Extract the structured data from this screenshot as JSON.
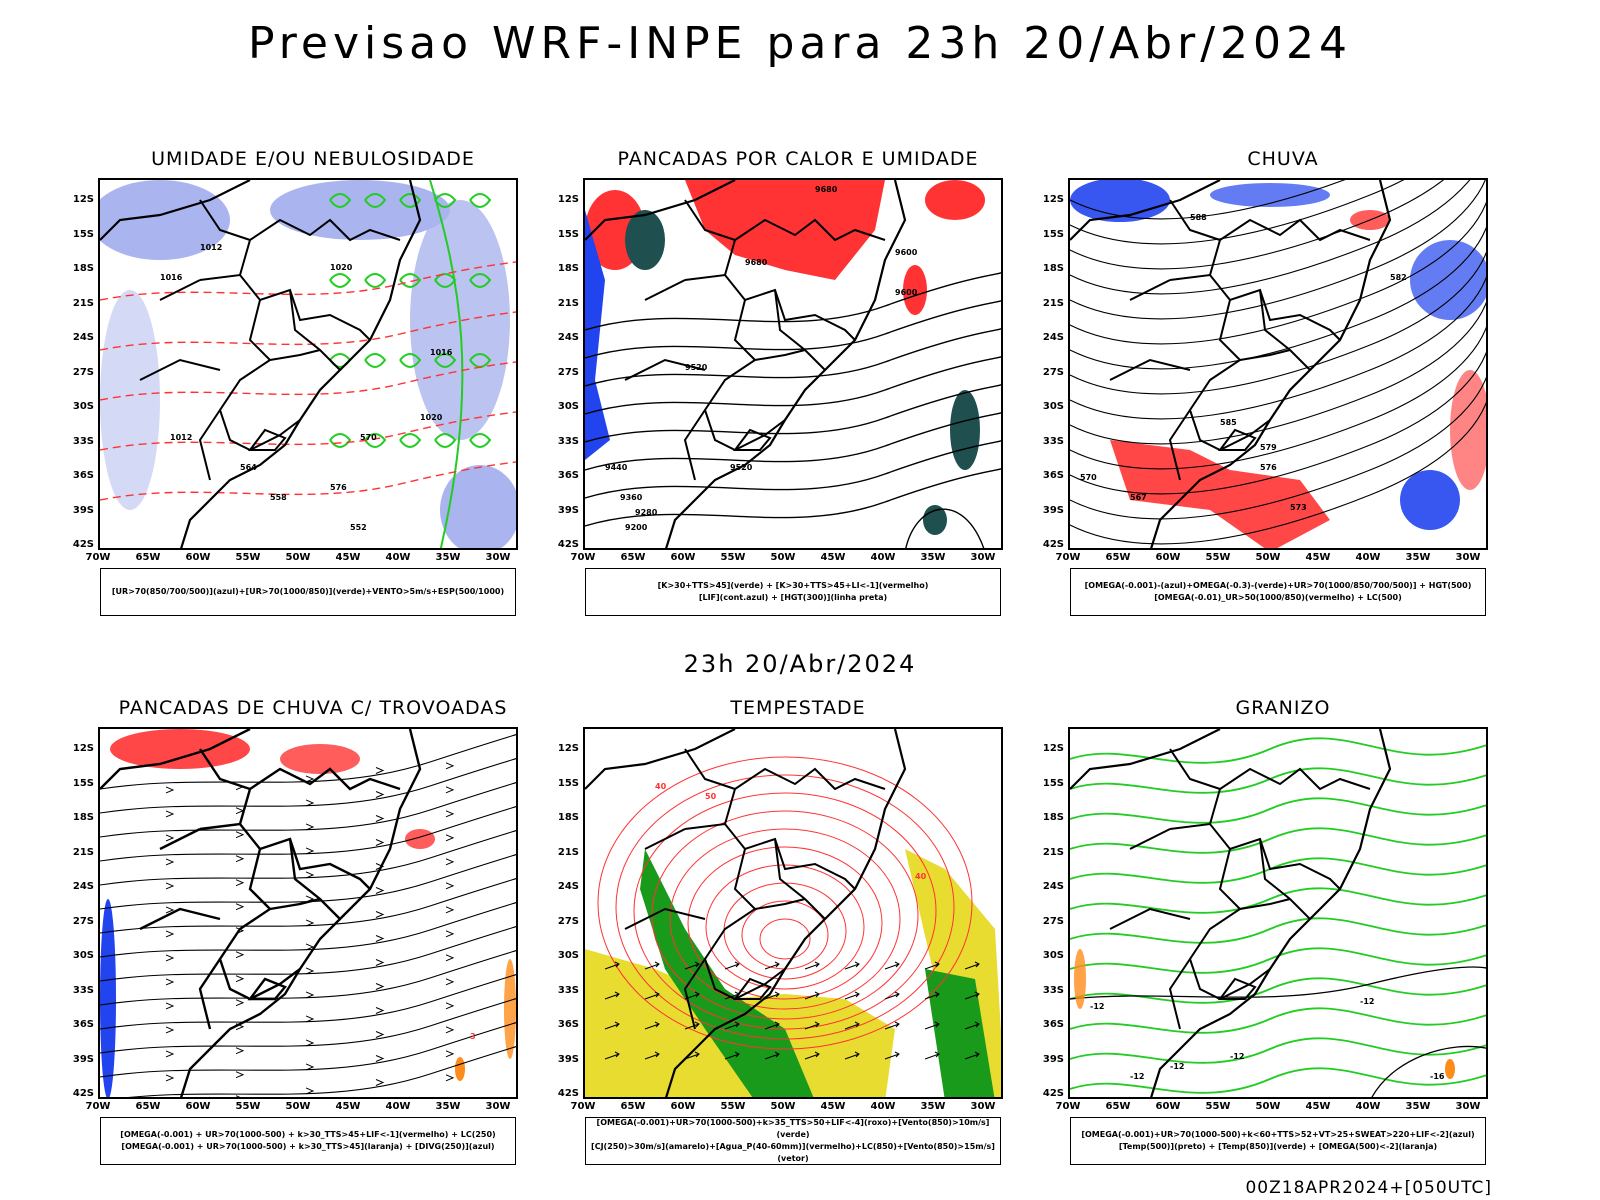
{
  "header": {
    "title": "Previsao WRF-INPE  para 23h 20/Abr/2024"
  },
  "mid_date": "23h 20/Abr/2024",
  "footer": {
    "run": "00Z18APR2024+[050UTC]"
  },
  "axes": {
    "lat_labels": [
      "12S",
      "15S",
      "18S",
      "21S",
      "24S",
      "27S",
      "30S",
      "33S",
      "36S",
      "39S",
      "42S"
    ],
    "lon_labels": [
      "70W",
      "65W",
      "60W",
      "55W",
      "50W",
      "45W",
      "40W",
      "35W",
      "30W"
    ]
  },
  "colors": {
    "blue_shade": "#aab4ee",
    "green": "#22cc22",
    "red": "#ff3333",
    "yellow": "#e8dc30",
    "blue": "#2244ee",
    "dark_teal": "#1f4f4f",
    "orange": "#ff8c1a",
    "dark_green": "#1a9a1a"
  },
  "panels": [
    {
      "title": "UMIDADE E/OU NEBULOSIDADE",
      "legend": [
        "[UR>70(850/700/500)](azul)+[UR>70(1000/850)](verde)+VENTO>5m/s+ESP(500/1000)"
      ],
      "labels": [
        "1012",
        "1016",
        "1020",
        "1016",
        "1020",
        "1012",
        "576",
        "570",
        "564",
        "558",
        "552"
      ]
    },
    {
      "title": "PANCADAS POR CALOR E UMIDADE",
      "legend": [
        "[K>30+TTS>45](verde) + [K>30+TTS>45+LI<-1](vermelho)",
        "[LIF](cont.azul) + [HGT(300)](linha preta)"
      ],
      "labels": [
        "9680",
        "9680",
        "9600",
        "9520",
        "9440",
        "9360",
        "9280",
        "9200",
        "9600",
        "9520"
      ]
    },
    {
      "title": "CHUVA",
      "legend": [
        "[OMEGA(-0.001)-(azul)+OMEGA(-0.3)-(verde)+UR>70(1000/850/700/500)] + HGT(500)",
        "[OMEGA(-0.01)_UR>50(1000/850)(vermelho) + LC(500)"
      ],
      "labels": [
        "588",
        "585",
        "582",
        "579",
        "576",
        "573",
        "570",
        "567"
      ]
    },
    {
      "title": "PANCADAS DE CHUVA C/ TROVOADAS",
      "legend": [
        "[OMEGA(-0.001) + UR>70(1000-500) + k>30_TTS>45+LIF<-1](vermelho) + LC(250)",
        "[OMEGA(-0.001) + UR>70(1000-500) + k>30_TTS>45](laranja) + [DIVG(250)](azul)"
      ],
      "labels": [
        "3"
      ]
    },
    {
      "title": "TEMPESTADE",
      "legend": [
        "[OMEGA(-0.001)+UR>70(1000-500)+k>35_TTS>50+LIF<-4](roxo)+[Vento(850)>10m/s](verde)",
        "[CJ(250)>30m/s](amarelo)+[Agua_P(40-60mm)](vermelho)+LC(850)+[Vento(850)>15m/s](vetor)"
      ],
      "labels": [
        "40",
        "50",
        "40"
      ]
    },
    {
      "title": "GRANIZO",
      "legend": [
        "[OMEGA(-0.001)+UR>70(1000-500)+k<60+TTS>52+VT>25+SWEAT>220+LIF<-2](azul)",
        "[Temp(500)](preto) + [Temp(850)](verde) + [OMEGA(500)<-2](laranja)"
      ],
      "labels": [
        "-12",
        "-12",
        "-12",
        "-12",
        "-16",
        "-12"
      ]
    }
  ]
}
